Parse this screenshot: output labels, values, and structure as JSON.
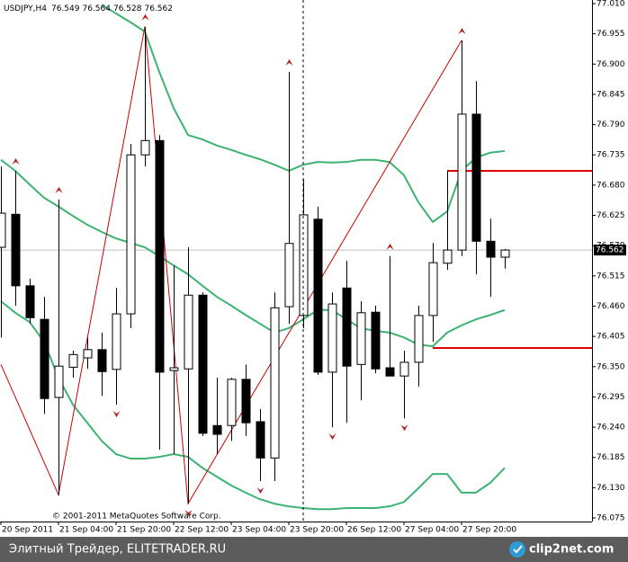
{
  "chart_data": {
    "type": "candlestick",
    "title": "USDJPY,H4",
    "categories": [
      "20 Sep 2011",
      null,
      null,
      null,
      "21 Sep 04:00",
      null,
      null,
      null,
      "21 Sep 20:00",
      null,
      null,
      null,
      "22 Sep 12:00",
      null,
      null,
      null,
      "23 Sep 04:00",
      null,
      null,
      null,
      "23 Sep 20:00",
      null,
      null,
      null,
      "26 Sep 12:00",
      null,
      null,
      null,
      "27 Sep 04:00",
      null,
      null,
      null,
      "27 Sep 20:00",
      null,
      null,
      null
    ],
    "open": [
      76.567,
      76.627,
      76.497,
      76.436,
      76.294,
      76.349,
      76.366,
      76.381,
      76.345,
      76.446,
      76.735,
      76.761,
      76.343,
      76.346,
      76.48,
      76.243,
      76.243,
      76.327,
      76.25,
      76.184,
      76.459,
      76.443,
      76.618,
      76.34,
      76.493,
      76.354,
      76.449,
      76.348,
      76.333,
      76.358,
      76.443,
      76.538,
      76.562,
      76.809,
      76.578,
      76.549
    ],
    "high": [
      76.714,
      76.706,
      76.51,
      76.477,
      76.654,
      76.379,
      76.403,
      76.412,
      76.493,
      76.755,
      76.968,
      76.771,
      76.534,
      76.567,
      76.485,
      76.33,
      76.33,
      76.354,
      76.273,
      76.485,
      76.886,
      76.69,
      76.641,
      76.485,
      76.542,
      76.469,
      76.461,
      76.551,
      76.379,
      76.461,
      76.575,
      76.706,
      76.943,
      76.869,
      76.619,
      76.564
    ],
    "low": [
      76.403,
      76.461,
      76.428,
      76.264,
      76.117,
      76.33,
      76.346,
      76.297,
      76.281,
      76.42,
      76.714,
      76.199,
      76.191,
      76.101,
      76.224,
      76.191,
      76.215,
      76.224,
      76.142,
      76.142,
      76.428,
      76.42,
      76.335,
      76.24,
      76.248,
      76.289,
      76.338,
      76.333,
      76.256,
      76.314,
      76.395,
      76.526,
      76.551,
      76.518,
      76.477,
      76.528
    ],
    "close": [
      76.629,
      76.497,
      76.439,
      76.292,
      76.351,
      76.372,
      76.381,
      76.341,
      76.446,
      76.735,
      76.761,
      76.34,
      76.348,
      76.48,
      76.229,
      76.227,
      76.327,
      76.248,
      76.184,
      76.457,
      76.574,
      76.626,
      76.34,
      76.464,
      76.351,
      76.448,
      76.346,
      76.333,
      76.358,
      76.443,
      76.539,
      76.562,
      76.809,
      76.578,
      76.549,
      76.562
    ],
    "up_color": "#ffffff",
    "down_color": "#000000",
    "ylim": [
      76.0685,
      77.0165
    ],
    "yticks": [
      {
        "value": 77.01,
        "label": "77.010"
      },
      76.955,
      {
        "value": 76.9,
        "label": "76.900"
      },
      76.845,
      {
        "value": 76.79,
        "label": "76.790"
      },
      76.735,
      {
        "value": 76.68,
        "label": "76.680"
      },
      76.625,
      {
        "value": 76.57,
        "label": "76.570"
      },
      76.515,
      {
        "value": 76.46,
        "label": "76.460"
      },
      76.405,
      {
        "value": 76.35,
        "label": "76.350"
      },
      76.295,
      {
        "value": 76.24,
        "label": "76.240"
      },
      76.185,
      {
        "value": 76.13,
        "label": "76.130"
      },
      76.075
    ],
    "last_price": 76.562,
    "bands": [
      {
        "color": "#3cb371",
        "values": [
          null,
          null,
          null,
          null,
          null,
          null,
          null,
          77.008,
          76.992,
          76.976,
          76.959,
          76.886,
          76.82,
          76.771,
          76.763,
          76.752,
          76.744,
          76.735,
          76.727,
          76.717,
          76.706,
          76.717,
          76.722,
          76.721,
          76.722,
          76.726,
          76.726,
          76.722,
          76.698,
          76.649,
          76.613,
          76.632,
          76.706,
          76.73,
          76.739,
          76.742
        ]
      },
      {
        "color": "#3cb371",
        "values": [
          76.726,
          76.706,
          76.681,
          76.657,
          76.641,
          76.624,
          76.608,
          76.595,
          76.583,
          76.575,
          76.567,
          76.551,
          76.534,
          76.518,
          76.497,
          76.477,
          76.461,
          76.444,
          76.428,
          76.412,
          76.42,
          76.436,
          76.453,
          76.453,
          76.436,
          76.42,
          76.415,
          76.412,
          76.403,
          76.39,
          76.387,
          76.412,
          76.425,
          76.436,
          76.444,
          76.453
        ]
      },
      {
        "color": "#3cb371",
        "values": [
          76.469,
          76.448,
          76.431,
          76.395,
          76.33,
          76.281,
          76.248,
          76.215,
          76.191,
          76.183,
          76.183,
          76.186,
          76.191,
          76.186,
          76.166,
          76.15,
          76.134,
          76.121,
          76.109,
          76.101,
          76.096,
          76.093,
          76.091,
          76.091,
          76.093,
          76.093,
          76.093,
          76.096,
          76.104,
          76.129,
          76.155,
          76.155,
          76.121,
          76.121,
          76.139,
          76.166
        ]
      }
    ],
    "zigzag": {
      "color": "#cc0000",
      "at": [
        0,
        4,
        10,
        13,
        32
      ],
      "values": [
        76.354,
        76.117,
        76.968,
        76.101,
        76.943
      ]
    },
    "levels": {
      "color": "#e00000",
      "from": [
        31,
        30
      ],
      "values": [
        76.706,
        76.384
      ]
    },
    "fractals": {
      "color": "#b22222",
      "up": [
        1,
        4,
        10,
        20,
        27,
        32
      ],
      "down": [
        8,
        13,
        18,
        23,
        28
      ]
    },
    "copyright": "© 2001-2011 MetaQuotes Software Corp."
  },
  "footer": {
    "left": "Элитный Трейдер, ELITETRADER.RU",
    "right": "clip2net.com"
  }
}
